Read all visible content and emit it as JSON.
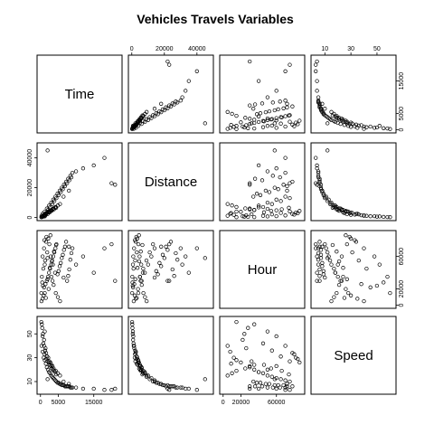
{
  "chart_data": {
    "type": "scatter",
    "title": "Vehicles Travels Variables",
    "variables": [
      {
        "name": "Time",
        "lim": [
          0,
          22000
        ],
        "ticks": [
          0,
          5000,
          15000
        ],
        "tick_labels": [
          "0",
          "5000",
          "15000"
        ]
      },
      {
        "name": "Distance",
        "lim": [
          0,
          48000
        ],
        "ticks": [
          0,
          20000,
          40000
        ],
        "tick_labels": [
          "0",
          "20000",
          "40000"
        ]
      },
      {
        "name": "Hour",
        "lim": [
          0,
          88000
        ],
        "ticks": [
          0,
          20000,
          60000
        ],
        "tick_labels": [
          "0",
          "20000",
          "60000"
        ]
      },
      {
        "name": "Speed",
        "lim": [
          2,
          62
        ],
        "ticks": [
          10,
          30,
          50
        ],
        "tick_labels": [
          "10",
          "30",
          "50"
        ]
      }
    ],
    "points": [
      [
        300,
        1200,
        5000,
        40
      ],
      [
        600,
        2500,
        8000,
        35
      ],
      [
        900,
        1800,
        12000,
        30
      ],
      [
        1200,
        4000,
        15000,
        28
      ],
      [
        1500,
        3000,
        9000,
        25
      ],
      [
        1800,
        6000,
        30000,
        22
      ],
      [
        2100,
        5000,
        35000,
        20
      ],
      [
        2400,
        8000,
        40000,
        18
      ],
      [
        2700,
        7000,
        45000,
        17
      ],
      [
        3000,
        10000,
        50000,
        15
      ],
      [
        3300,
        9000,
        55000,
        14
      ],
      [
        3600,
        12000,
        60000,
        13
      ],
      [
        3900,
        11000,
        65000,
        12
      ],
      [
        4200,
        14000,
        70000,
        11
      ],
      [
        4500,
        13000,
        75000,
        10
      ],
      [
        4800,
        16000,
        38000,
        9
      ],
      [
        5100,
        15000,
        42000,
        9
      ],
      [
        5400,
        18000,
        48000,
        8
      ],
      [
        5700,
        17000,
        52000,
        8
      ],
      [
        6000,
        20000,
        58000,
        7
      ],
      [
        6300,
        19000,
        62000,
        7
      ],
      [
        6600,
        22000,
        68000,
        7
      ],
      [
        6900,
        21000,
        72000,
        6
      ],
      [
        7200,
        24000,
        78000,
        6
      ],
      [
        7500,
        23000,
        30000,
        6
      ],
      [
        7800,
        26000,
        36000,
        6
      ],
      [
        8100,
        25000,
        44000,
        6
      ],
      [
        8400,
        28000,
        56000,
        5
      ],
      [
        8700,
        27000,
        64000,
        5
      ],
      [
        9000,
        30000,
        70000,
        5
      ],
      [
        1000,
        800,
        22000,
        45
      ],
      [
        1400,
        1500,
        26000,
        38
      ],
      [
        700,
        600,
        24000,
        50
      ],
      [
        500,
        400,
        28000,
        55
      ],
      [
        2000,
        2200,
        32000,
        27
      ],
      [
        2600,
        3500,
        46000,
        24
      ],
      [
        3200,
        4500,
        54000,
        21
      ],
      [
        3800,
        5500,
        66000,
        19
      ],
      [
        4400,
        6500,
        74000,
        16
      ],
      [
        1100,
        1900,
        80000,
        33
      ],
      [
        1700,
        2800,
        84000,
        29
      ],
      [
        2300,
        3800,
        20000,
        26
      ],
      [
        2900,
        4800,
        60000,
        23
      ],
      [
        3500,
        5800,
        50000,
        20
      ],
      [
        4100,
        6800,
        40000,
        18
      ],
      [
        800,
        1100,
        45000,
        42
      ],
      [
        1300,
        2100,
        55000,
        36
      ],
      [
        1900,
        3100,
        65000,
        31
      ],
      [
        2500,
        4100,
        75000,
        27
      ],
      [
        3100,
        5100,
        35000,
        24
      ],
      [
        3700,
        6100,
        25000,
        21
      ],
      [
        4300,
        7100,
        15000,
        19
      ],
      [
        4900,
        8100,
        10000,
        17
      ],
      [
        5500,
        9100,
        5000,
        15
      ],
      [
        600,
        900,
        60000,
        48
      ],
      [
        1000,
        1400,
        70000,
        40
      ],
      [
        1600,
        2400,
        78000,
        34
      ],
      [
        2200,
        3400,
        82000,
        30
      ],
      [
        2800,
        4400,
        86000,
        26
      ],
      [
        3400,
        5400,
        30000,
        23
      ],
      [
        10000,
        31000,
        50000,
        5
      ],
      [
        12000,
        33000,
        60000,
        4
      ],
      [
        15000,
        35000,
        40000,
        4
      ],
      [
        18000,
        40000,
        70000,
        3
      ],
      [
        20000,
        23000,
        75000,
        3
      ],
      [
        21000,
        22000,
        30000,
        4
      ],
      [
        2000,
        45000,
        58000,
        12
      ],
      [
        6500,
        14000,
        34000,
        10
      ],
      [
        8000,
        18000,
        72000,
        8
      ],
      [
        400,
        300,
        35000,
        58
      ],
      [
        1200,
        700,
        50000,
        52
      ],
      [
        250,
        200,
        15000,
        60
      ]
    ]
  }
}
